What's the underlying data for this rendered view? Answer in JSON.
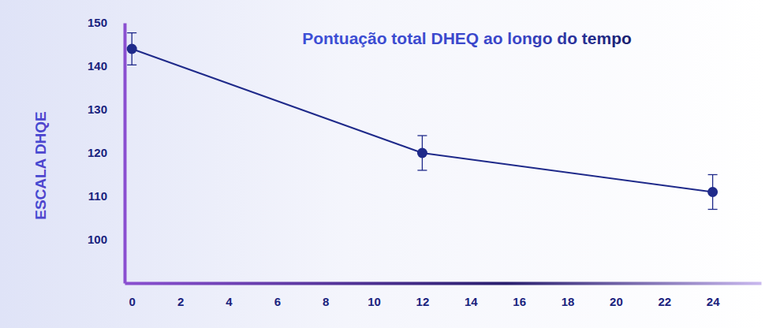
{
  "chart_data": {
    "type": "line",
    "title": "Pontuação total DHEQ ao longo do tempo",
    "y_label": "ESCALA DHQE",
    "x": [
      0,
      12,
      24
    ],
    "values": [
      144,
      120,
      111
    ],
    "errors": [
      3.7,
      4,
      4
    ],
    "color": "#1f2a8a",
    "marker": "circle",
    "xlim": [
      -0.3,
      26
    ],
    "xticks": [
      0,
      2,
      4,
      6,
      8,
      10,
      12,
      14,
      16,
      18,
      20,
      22,
      24
    ],
    "ylim": [
      90,
      150
    ],
    "yticks": [
      100,
      110,
      120,
      130,
      140,
      150
    ],
    "grid": false
  }
}
